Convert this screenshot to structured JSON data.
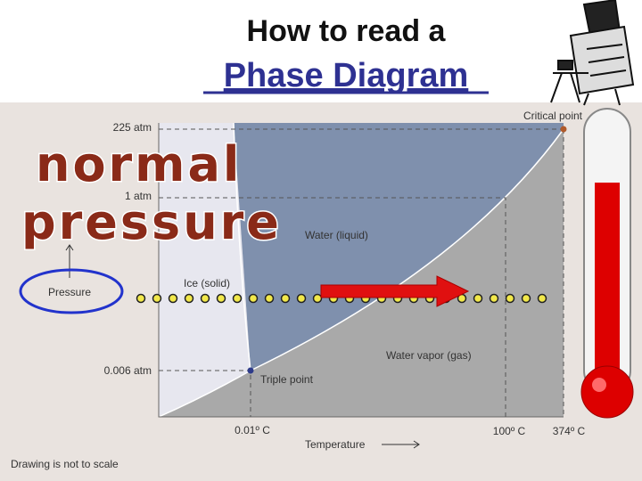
{
  "header": {
    "title": "How to read a",
    "subtitle": "Phase Diagram"
  },
  "diagram": {
    "pressure_labels": [
      "225 atm",
      "1 atm",
      "0.006 atm"
    ],
    "temperature_labels": [
      "0.01º C",
      "100º C",
      "374º C"
    ],
    "points": [
      "Critical point",
      "Triple point"
    ],
    "regions": [
      "Water (liquid)",
      "Ice (solid)",
      "Water vapor (gas)"
    ],
    "x_axis_label": "Temperature",
    "y_axis_label": "Pressure",
    "note": "Drawing is not to scale"
  },
  "overlay": {
    "line1": "normal",
    "line2": "pressure"
  }
}
